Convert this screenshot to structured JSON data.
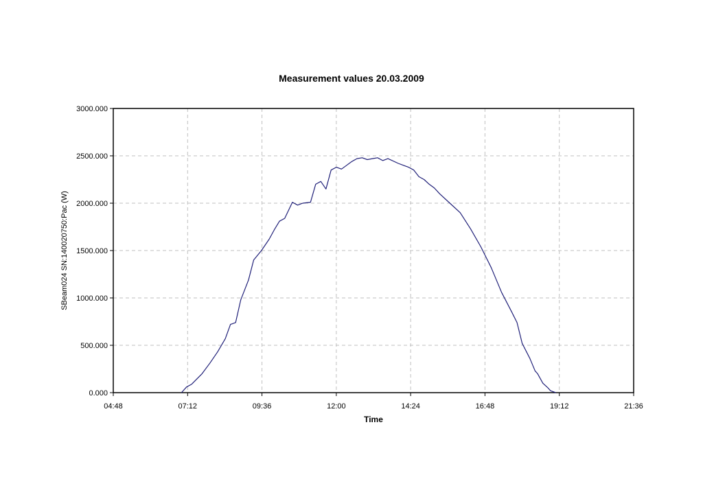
{
  "chart_data": {
    "type": "line",
    "title": "Measurement values 20.03.2009",
    "xlabel": "Time",
    "ylabel": "SBeam024 SN:140020750:Pac (W)",
    "xlim": [
      "04:48",
      "21:36"
    ],
    "ylim": [
      0,
      3000
    ],
    "x_ticks": [
      "04:48",
      "07:12",
      "09:36",
      "12:00",
      "14:24",
      "16:48",
      "19:12",
      "21:36"
    ],
    "y_ticks": [
      "0.000",
      "500.000",
      "1000.000",
      "1500.000",
      "2000.000",
      "2500.000",
      "3000.000"
    ],
    "grid": true,
    "legend": "none",
    "line_color": "#1f1f78",
    "series": [
      {
        "x": [
          "07:00",
          "07:10",
          "07:20",
          "07:40",
          "07:55",
          "08:10",
          "08:25",
          "08:35",
          "08:45",
          "08:55",
          "09:10",
          "09:20",
          "09:35",
          "09:50",
          "10:00",
          "10:10",
          "10:20",
          "10:35",
          "10:45",
          "10:55",
          "11:10",
          "11:20",
          "11:30",
          "11:40",
          "11:50",
          "12:00",
          "12:10",
          "12:20",
          "12:30",
          "12:40",
          "12:50",
          "13:00",
          "13:10",
          "13:20",
          "13:30",
          "13:40",
          "14:00",
          "14:10",
          "14:20",
          "14:30",
          "14:40",
          "14:50",
          "15:00",
          "15:10",
          "15:20",
          "15:40",
          "16:00",
          "16:20",
          "16:40",
          "17:00",
          "17:20",
          "17:40",
          "17:50",
          "18:00",
          "18:15",
          "18:25",
          "18:30",
          "18:40",
          "18:50",
          "18:55",
          "19:05"
        ],
        "y": [
          0,
          60,
          90,
          200,
          310,
          430,
          570,
          720,
          740,
          980,
          1190,
          1400,
          1500,
          1620,
          1720,
          1810,
          1840,
          2010,
          1980,
          2000,
          2010,
          2200,
          2230,
          2150,
          2350,
          2380,
          2360,
          2400,
          2440,
          2470,
          2480,
          2460,
          2470,
          2480,
          2450,
          2470,
          2420,
          2400,
          2380,
          2350,
          2280,
          2250,
          2200,
          2160,
          2100,
          2000,
          1900,
          1730,
          1540,
          1320,
          1060,
          850,
          740,
          520,
          360,
          230,
          200,
          100,
          50,
          20,
          0
        ]
      }
    ]
  }
}
